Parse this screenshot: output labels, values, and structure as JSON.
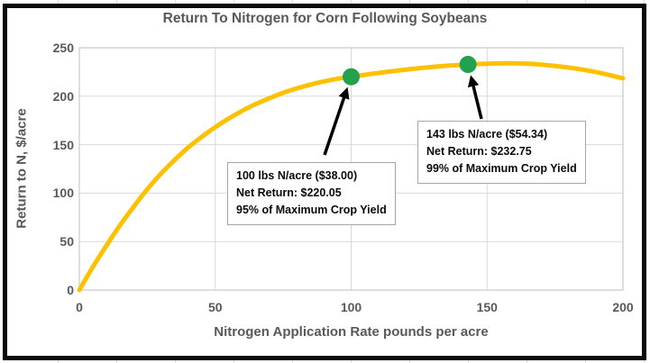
{
  "colors": {
    "background": "#FFFFFF",
    "frame_border": "#0A0A0A",
    "grid": "#D9D9D9",
    "plot_border": "#C9C9C9",
    "axis_text": "#595959",
    "curve": "#FFC000",
    "marker_green": "#22A24E",
    "annotation_border": "#A6A6A6",
    "arrow": "#000000"
  },
  "chart_data": {
    "type": "line",
    "title": "Return To Nitrogen for Corn Following Soybeans",
    "xlabel": "Nitrogen Application Rate pounds per acre",
    "ylabel": "Return to N, $/acre",
    "xlim": [
      0,
      200
    ],
    "ylim": [
      0,
      250
    ],
    "x_ticks": [
      0,
      50,
      100,
      150,
      200
    ],
    "y_ticks": [
      0,
      50,
      100,
      150,
      200,
      250
    ],
    "grid": true,
    "legend": false,
    "series": [
      {
        "name": "Return to N",
        "color": "#FFC000",
        "points": [
          [
            0,
            0
          ],
          [
            5,
            24
          ],
          [
            10,
            46
          ],
          [
            15,
            67
          ],
          [
            20,
            86
          ],
          [
            25,
            104
          ],
          [
            30,
            120
          ],
          [
            35,
            134
          ],
          [
            40,
            147
          ],
          [
            45,
            158
          ],
          [
            50,
            168
          ],
          [
            55,
            177
          ],
          [
            60,
            185
          ],
          [
            65,
            192
          ],
          [
            70,
            198
          ],
          [
            75,
            203.5
          ],
          [
            80,
            208
          ],
          [
            85,
            212
          ],
          [
            90,
            215.3
          ],
          [
            95,
            218
          ],
          [
            100,
            220.05
          ],
          [
            110,
            224
          ],
          [
            120,
            227.3
          ],
          [
            130,
            230.2
          ],
          [
            140,
            232.3
          ],
          [
            143,
            232.75
          ],
          [
            150,
            233.5
          ],
          [
            160,
            233.9
          ],
          [
            170,
            232.6
          ],
          [
            180,
            229.6
          ],
          [
            190,
            225
          ],
          [
            200,
            218.4
          ]
        ]
      }
    ],
    "markers": [
      {
        "x": 100,
        "y": 220.05,
        "color": "#22A24E"
      },
      {
        "x": 143,
        "y": 232.75,
        "color": "#22A24E"
      }
    ],
    "annotations": [
      {
        "points_to_marker": 0,
        "lines": [
          "100 lbs N/acre ($38.00)",
          "Net Return: $220.05",
          "95% of Maximum Crop Yield"
        ]
      },
      {
        "points_to_marker": 1,
        "lines": [
          "143 lbs N/acre ($54.34)",
          "Net Return: $232.75",
          "99% of Maximum Crop Yield"
        ]
      }
    ]
  }
}
